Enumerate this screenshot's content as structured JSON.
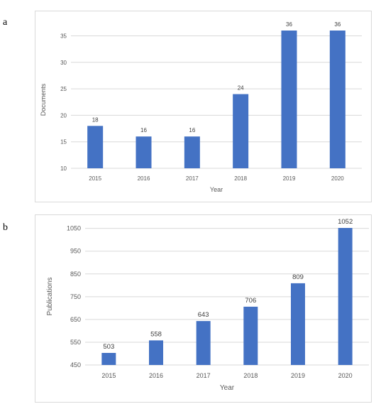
{
  "panels": [
    "a",
    "b"
  ],
  "colors": {
    "bar": "#4472C4",
    "grid": "#d9d9d9",
    "axis_text": "#595959",
    "label_text": "#404040",
    "border": "#d9d9d9"
  },
  "chart_data": [
    {
      "type": "bar",
      "panel": "a",
      "title": "",
      "xlabel": "Year",
      "ylabel": "Documents",
      "categories": [
        "2015",
        "2016",
        "2017",
        "2018",
        "2019",
        "2020"
      ],
      "values": [
        18,
        16,
        16,
        24,
        36,
        36
      ],
      "data_labels": [
        "18",
        "16",
        "16",
        "24",
        "36",
        "36"
      ],
      "ylim": [
        10,
        36
      ],
      "yticks": [
        10,
        15,
        20,
        25,
        30,
        35
      ],
      "grid": true
    },
    {
      "type": "bar",
      "panel": "b",
      "title": "",
      "xlabel": "Year",
      "ylabel": "Publications",
      "categories": [
        "2015",
        "2016",
        "2017",
        "2018",
        "2019",
        "2020"
      ],
      "values": [
        503,
        558,
        643,
        706,
        809,
        1052
      ],
      "data_labels": [
        "503",
        "558",
        "643",
        "706",
        "809",
        "1052"
      ],
      "ylim": [
        450,
        1052
      ],
      "yticks": [
        450,
        550,
        650,
        750,
        850,
        950,
        1050
      ],
      "grid": true
    }
  ]
}
